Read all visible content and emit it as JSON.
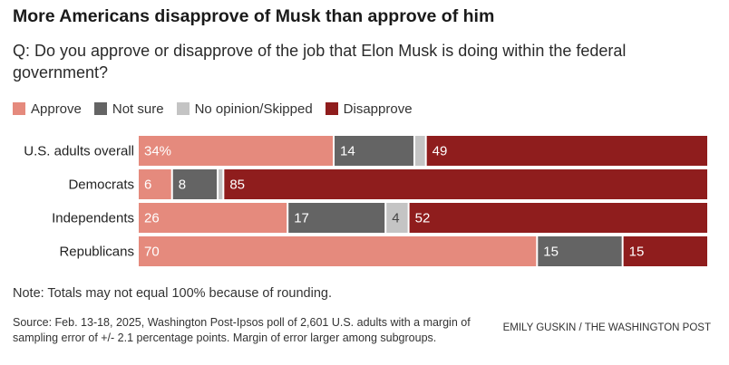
{
  "title": "More Americans disapprove of Musk than approve of him",
  "question": "Q: Do you approve or disapprove of the job that Elon Musk is doing within the federal government?",
  "note": "Note: Totals may not equal 100% because of rounding.",
  "source": "Source: Feb. 13-18, 2025, Washington Post-Ipsos poll of 2,601 U.S. adults with a margin of sampling error of +/- 2.1 percentage points. Margin of error larger among subgroups.",
  "credit": "EMILY GUSKIN / THE WASHINGTON POST",
  "chart_data": {
    "type": "bar",
    "orientation": "horizontal",
    "stacked": true,
    "legend_position": "top-left",
    "grid": false,
    "xlim": [
      0,
      100
    ],
    "categories": [
      "U.S. adults overall",
      "Democrats",
      "Independents",
      "Republicans"
    ],
    "series": [
      {
        "name": "Approve",
        "color": "#e58a7d",
        "values": [
          34,
          6,
          26,
          70
        ],
        "labels": [
          "34%",
          "6",
          "26",
          "70"
        ]
      },
      {
        "name": "Not sure",
        "color": "#646464",
        "values": [
          14,
          8,
          17,
          15
        ],
        "labels": [
          "14",
          "8",
          "17",
          "15"
        ]
      },
      {
        "name": "No opinion/Skipped",
        "color": "#c4c4c4",
        "values": [
          2,
          1,
          4,
          0
        ],
        "labels": [
          "",
          "",
          "4",
          ""
        ]
      },
      {
        "name": "Disapprove",
        "color": "#8f1d1d",
        "values": [
          49,
          85,
          52,
          15
        ],
        "labels": [
          "49",
          "85",
          "52",
          "15"
        ]
      }
    ]
  }
}
